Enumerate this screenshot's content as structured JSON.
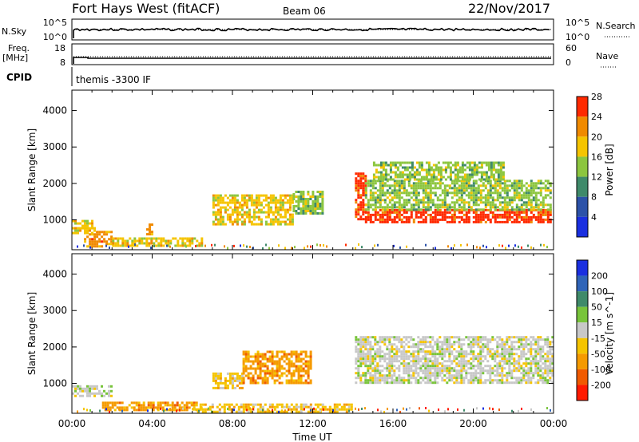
{
  "header": {
    "title": "Fort Hays West (fitACF)",
    "beam": "Beam 06",
    "date": "22/Nov/2017"
  },
  "top_panels": {
    "nsky_label": "N.Sky",
    "nsearch_label": "N.Search",
    "noise_tick_hi": "10^5",
    "noise_tick_lo": "10^0",
    "freq_label": "Freq.",
    "freq_units": "[MHz]",
    "freq_ticks": [
      "18",
      "8"
    ],
    "nave_label": "Nave",
    "nave_ticks": [
      "60",
      "0"
    ],
    "cpid_label": "CPID",
    "cpid_text": "themis -3300 IF"
  },
  "chart_data": [
    {
      "type": "heatmap",
      "name": "power",
      "ylabel": "Slant Range [km]",
      "yticks": [
        "1000",
        "2000",
        "3000",
        "4000"
      ],
      "ylim": [
        180,
        4560
      ],
      "xlim_hours": [
        0,
        24
      ],
      "colorbar": {
        "label": "Power [dB]",
        "ticks": [
          "4",
          "8",
          "12",
          "16",
          "20",
          "24",
          "28"
        ],
        "levels": [
          {
            "from": 0,
            "to": 6,
            "color": "#1a2fe0"
          },
          {
            "from": 6,
            "to": 10,
            "color": "#2c52a8"
          },
          {
            "from": 10,
            "to": 14,
            "color": "#3f8a6a"
          },
          {
            "from": 14,
            "to": 18,
            "color": "#8cc63f"
          },
          {
            "from": 18,
            "to": 22,
            "color": "#f5c400"
          },
          {
            "from": 22,
            "to": 26,
            "color": "#f08a00"
          },
          {
            "from": 26,
            "to": 32,
            "color": "#ff2a00"
          }
        ]
      },
      "bands": [
        {
          "t0": 0.0,
          "t1": 1.1,
          "range0": 650,
          "range1": 1000,
          "level": 4
        },
        {
          "t0": 0.6,
          "t1": 2.0,
          "range0": 300,
          "range1": 700,
          "level": 5
        },
        {
          "t0": 2.0,
          "t1": 6.5,
          "range0": 280,
          "range1": 520,
          "level": 4
        },
        {
          "t0": 3.7,
          "t1": 4.0,
          "range0": 620,
          "range1": 900,
          "level": 5
        },
        {
          "t0": 7.0,
          "t1": 11.0,
          "range0": 900,
          "range1": 1700,
          "level": 4
        },
        {
          "t0": 11.0,
          "t1": 12.5,
          "range0": 1200,
          "range1": 1800,
          "level": 3
        },
        {
          "t0": 14.1,
          "t1": 14.6,
          "range0": 1000,
          "range1": 2300,
          "level": 6
        },
        {
          "t0": 14.6,
          "t1": 23.9,
          "range0": 950,
          "range1": 1300,
          "level": 6
        },
        {
          "t0": 14.6,
          "t1": 23.9,
          "range0": 1300,
          "range1": 2100,
          "level": 3
        },
        {
          "t0": 15.0,
          "t1": 21.5,
          "range0": 2100,
          "range1": 2600,
          "level": 3
        }
      ]
    },
    {
      "type": "heatmap",
      "name": "velocity",
      "ylabel": "Slant Range [km]",
      "yticks": [
        "1000",
        "2000",
        "3000",
        "4000"
      ],
      "ylim": [
        180,
        4560
      ],
      "xlim_hours": [
        0,
        24
      ],
      "colorbar": {
        "label": "Velocity [m s^-1]",
        "ticks": [
          "200",
          "100",
          "50",
          "15",
          "-15",
          "-50",
          "-100",
          "-200"
        ],
        "levels": [
          {
            "from": 200,
            "to": 300,
            "color": "#1a2fe0"
          },
          {
            "from": 100,
            "to": 200,
            "color": "#2f64b8"
          },
          {
            "from": 50,
            "to": 100,
            "color": "#3f8a6a"
          },
          {
            "from": 15,
            "to": 50,
            "color": "#78c43a"
          },
          {
            "from": -15,
            "to": 15,
            "color": "#c8c8c8"
          },
          {
            "from": -50,
            "to": -15,
            "color": "#f5c400"
          },
          {
            "from": -100,
            "to": -50,
            "color": "#f59a00"
          },
          {
            "from": -200,
            "to": -100,
            "color": "#f05a00"
          },
          {
            "from": -300,
            "to": -200,
            "color": "#ff1a00"
          }
        ]
      },
      "bands": [
        {
          "t0": 0.0,
          "t1": 2.0,
          "range0": 650,
          "range1": 950,
          "level": 4
        },
        {
          "t0": 1.5,
          "t1": 6.5,
          "range0": 300,
          "range1": 500,
          "level": 6
        },
        {
          "t0": 7.0,
          "t1": 8.5,
          "range0": 900,
          "range1": 1300,
          "level": 5
        },
        {
          "t0": 8.5,
          "t1": 11.9,
          "range0": 1000,
          "range1": 1900,
          "level": 6
        },
        {
          "t0": 14.1,
          "t1": 23.9,
          "range0": 1000,
          "range1": 2300,
          "level": 4
        },
        {
          "t0": 6.0,
          "t1": 14.0,
          "range0": 250,
          "range1": 450,
          "level": 5
        }
      ]
    }
  ],
  "time_axis": {
    "ticks": [
      "00:00",
      "04:00",
      "08:00",
      "12:00",
      "16:00",
      "20:00",
      "00:00"
    ],
    "label": "Time UT"
  }
}
